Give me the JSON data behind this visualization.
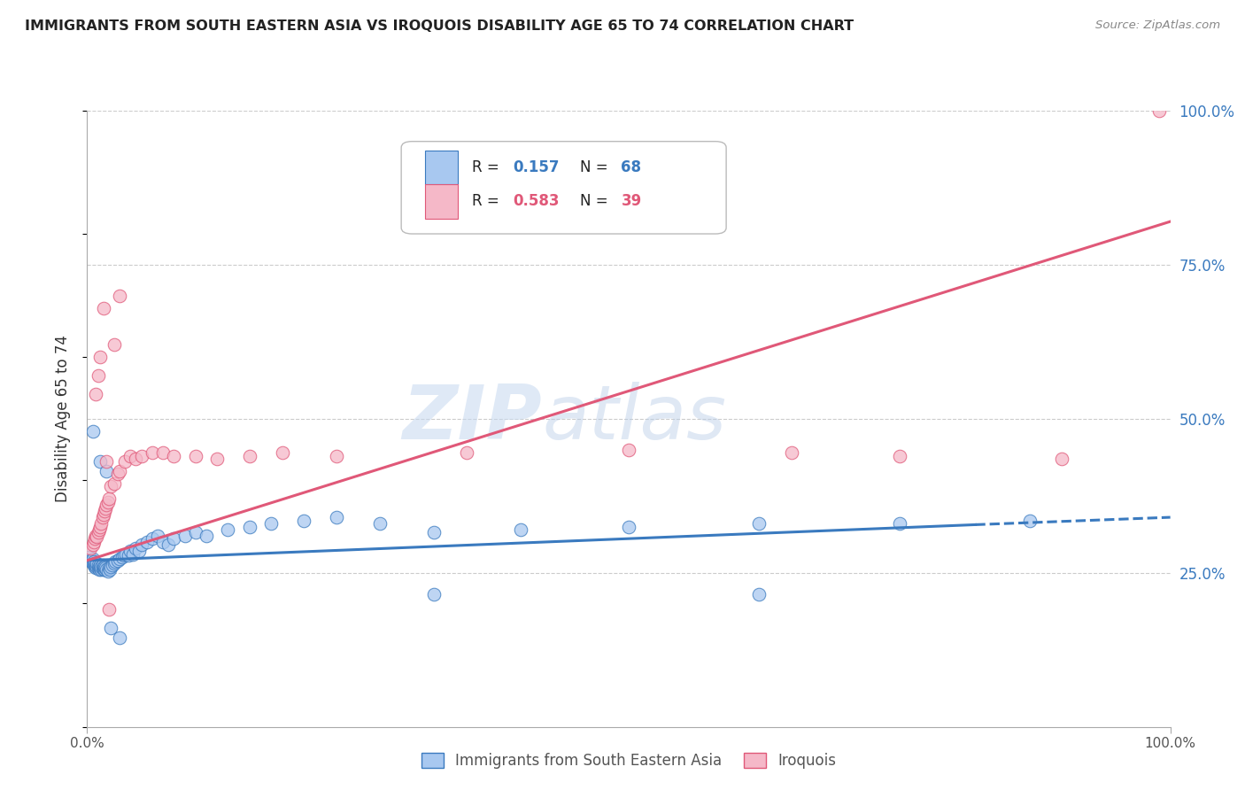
{
  "title": "IMMIGRANTS FROM SOUTH EASTERN ASIA VS IROQUOIS DISABILITY AGE 65 TO 74 CORRELATION CHART",
  "source": "Source: ZipAtlas.com",
  "ylabel": "Disability Age 65 to 74",
  "legend_label1": "Immigrants from South Eastern Asia",
  "legend_label2": "Iroquois",
  "R1": "0.157",
  "N1": "68",
  "R2": "0.583",
  "N2": "39",
  "color1": "#a8c8f0",
  "color2": "#f5b8c8",
  "line_color1": "#3a7abf",
  "line_color2": "#e05878",
  "text_color_blue": "#3a7abf",
  "text_color_dark": "#222222",
  "grid_color": "#cccccc",
  "watermark": "ZIPatlas",
  "xlim": [
    0.0,
    1.0
  ],
  "ylim": [
    0.0,
    1.0
  ],
  "ytick_positions": [
    0.25,
    0.5,
    0.75,
    1.0
  ],
  "scatter1_x": [
    0.002,
    0.003,
    0.004,
    0.005,
    0.005,
    0.006,
    0.006,
    0.007,
    0.007,
    0.008,
    0.008,
    0.009,
    0.009,
    0.01,
    0.01,
    0.011,
    0.011,
    0.012,
    0.012,
    0.013,
    0.013,
    0.014,
    0.014,
    0.015,
    0.015,
    0.016,
    0.016,
    0.017,
    0.018,
    0.019,
    0.02,
    0.021,
    0.022,
    0.023,
    0.025,
    0.026,
    0.028,
    0.03,
    0.032,
    0.034,
    0.036,
    0.038,
    0.04,
    0.042,
    0.045,
    0.048,
    0.05,
    0.055,
    0.06,
    0.065,
    0.07,
    0.075,
    0.08,
    0.09,
    0.1,
    0.11,
    0.13,
    0.15,
    0.17,
    0.2,
    0.23,
    0.27,
    0.32,
    0.4,
    0.5,
    0.62,
    0.75,
    0.87
  ],
  "scatter1_y": [
    0.275,
    0.27,
    0.268,
    0.265,
    0.272,
    0.262,
    0.268,
    0.26,
    0.265,
    0.258,
    0.262,
    0.26,
    0.265,
    0.258,
    0.262,
    0.255,
    0.26,
    0.258,
    0.262,
    0.255,
    0.26,
    0.258,
    0.262,
    0.255,
    0.26,
    0.255,
    0.26,
    0.258,
    0.255,
    0.252,
    0.258,
    0.255,
    0.26,
    0.262,
    0.265,
    0.268,
    0.27,
    0.272,
    0.275,
    0.278,
    0.28,
    0.278,
    0.285,
    0.28,
    0.29,
    0.285,
    0.295,
    0.3,
    0.305,
    0.31,
    0.3,
    0.295,
    0.305,
    0.31,
    0.315,
    0.31,
    0.32,
    0.325,
    0.33,
    0.335,
    0.34,
    0.33,
    0.315,
    0.32,
    0.325,
    0.33,
    0.33,
    0.335
  ],
  "scatter1_outliers_x": [
    0.005,
    0.012,
    0.018,
    0.022,
    0.03,
    0.32,
    0.62
  ],
  "scatter1_outliers_y": [
    0.48,
    0.43,
    0.415,
    0.16,
    0.145,
    0.215,
    0.215
  ],
  "scatter2_x": [
    0.003,
    0.005,
    0.006,
    0.007,
    0.008,
    0.009,
    0.01,
    0.011,
    0.012,
    0.013,
    0.014,
    0.015,
    0.016,
    0.017,
    0.018,
    0.019,
    0.02,
    0.022,
    0.025,
    0.028,
    0.03,
    0.035,
    0.04,
    0.045,
    0.05,
    0.06,
    0.07,
    0.08,
    0.1,
    0.12,
    0.15,
    0.18,
    0.23,
    0.35,
    0.5,
    0.65,
    0.75,
    0.9,
    0.99
  ],
  "scatter2_y": [
    0.29,
    0.295,
    0.3,
    0.305,
    0.31,
    0.308,
    0.315,
    0.32,
    0.325,
    0.33,
    0.34,
    0.345,
    0.35,
    0.355,
    0.36,
    0.365,
    0.37,
    0.39,
    0.395,
    0.41,
    0.415,
    0.43,
    0.44,
    0.435,
    0.44,
    0.445,
    0.445,
    0.44,
    0.44,
    0.435,
    0.44,
    0.445,
    0.44,
    0.445,
    0.45,
    0.445,
    0.44,
    0.435,
    1.0
  ],
  "scatter2_outliers_x": [
    0.008,
    0.01,
    0.012,
    0.015,
    0.018,
    0.02,
    0.025,
    0.03
  ],
  "scatter2_outliers_y": [
    0.54,
    0.57,
    0.6,
    0.68,
    0.43,
    0.19,
    0.62,
    0.7
  ],
  "line1_x0": 0.0,
  "line1_x1": 0.82,
  "line1_y0": 0.27,
  "line1_y1": 0.328,
  "line1_dash_x0": 0.82,
  "line1_dash_x1": 1.0,
  "line1_dash_y0": 0.328,
  "line1_dash_y1": 0.34,
  "line2_x0": 0.0,
  "line2_x1": 1.0,
  "line2_y0": 0.27,
  "line2_y1": 0.82
}
